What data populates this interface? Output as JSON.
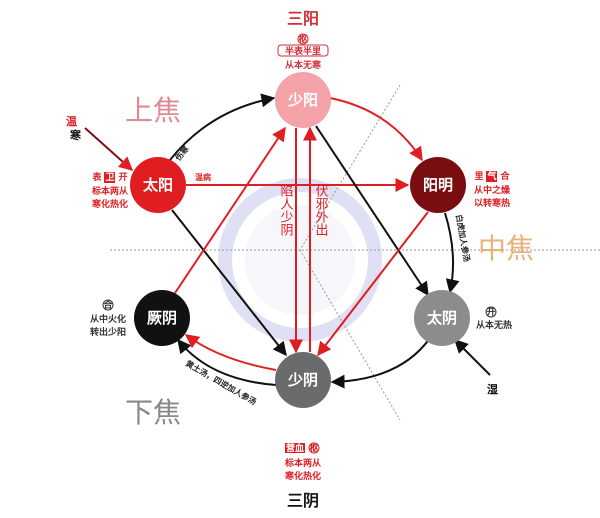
{
  "top_title": "三阳",
  "bottom_title": "三阴",
  "jiao": {
    "upper": "上焦",
    "middle": "中焦",
    "lower": "下焦"
  },
  "nodes": {
    "shaoyang": {
      "label": "少阳",
      "color": "#f4a3a8",
      "badge": "枢",
      "tag": "半表半里",
      "note": "从本无寒"
    },
    "taiyang": {
      "label": "太阳",
      "color": "#e01e22",
      "badges": [
        "表",
        "卫",
        "开"
      ],
      "note1": "标本两从",
      "note2": "寒化热化"
    },
    "yangming": {
      "label": "阳明",
      "color": "#7a0d10",
      "badges": [
        "里",
        "气",
        "合"
      ],
      "note1": "从中之燥",
      "note2": "以转寒热"
    },
    "jueyin": {
      "label": "厥阴",
      "color": "#111111",
      "badge": "合",
      "note1": "从中火化",
      "note2": "转出少阳"
    },
    "taiyin": {
      "label": "太阴",
      "color": "#8c8c8c",
      "badge": "开",
      "note": "从本无热"
    },
    "shaoyin": {
      "label": "少阴",
      "color": "#6b6b6b",
      "badges": [
        "营血",
        "枢"
      ],
      "note1": "标本两从",
      "note2": "寒化热化"
    }
  },
  "external": {
    "warm": "温",
    "cold": "寒",
    "damp": "湿"
  },
  "center": {
    "down": "陷人少阴",
    "up": "伏邪外出"
  },
  "edges": {
    "shanghan": "伤寒",
    "wenbing": "温病",
    "baihu": "白虎加人参汤",
    "huangtu": "黄土汤，四逆加人参汤"
  },
  "colors": {
    "red": "#e01e22",
    "black": "#111111"
  }
}
